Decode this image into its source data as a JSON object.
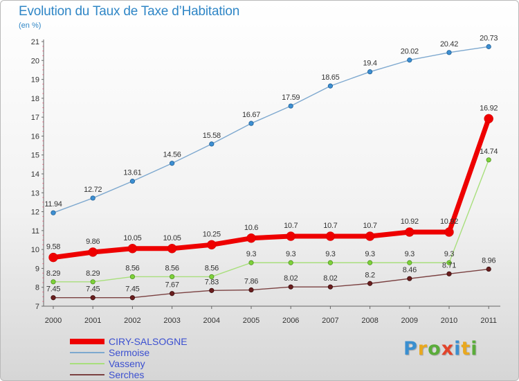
{
  "title": "Evolution du Taux de Taxe d’Habitation",
  "subtitle": "(en %)",
  "logo": {
    "text": "Proxiti",
    "letter_colors": [
      "#3a8fd0",
      "#e9a81f",
      "#5aac3a",
      "#e2442b",
      "#3a8fd0",
      "#e9a81f",
      "#5aac3a"
    ]
  },
  "chart_data": {
    "type": "line",
    "title": "Evolution du Taux de Taxe d’Habitation",
    "ylabel": "(en %)",
    "xlabel": "",
    "x": [
      "2000",
      "2001",
      "2002",
      "2003",
      "2004",
      "2005",
      "2006",
      "2007",
      "2008",
      "2009",
      "2010",
      "2011"
    ],
    "ylim": [
      7,
      21
    ],
    "yticks": [
      "7",
      "8",
      "9",
      "10",
      "11",
      "12",
      "13",
      "14",
      "15",
      "16",
      "17",
      "18",
      "19",
      "20",
      "21"
    ],
    "grid": false,
    "legend_position": "bottom-left",
    "series": [
      {
        "name": "CIRY-SALSOGNE",
        "color": "#ee0000",
        "values": [
          9.58,
          9.86,
          10.05,
          10.05,
          10.25,
          10.6,
          10.7,
          10.7,
          10.7,
          10.92,
          10.92,
          16.92
        ],
        "labels": [
          "9.58",
          "9.86",
          "10.05",
          "10.05",
          "10.25",
          "10.6",
          "10.7",
          "10.7",
          "10.7",
          "10.92",
          "10.92",
          "16.92"
        ]
      },
      {
        "name": "Sermoise",
        "color": "#7da8cf",
        "values": [
          11.94,
          12.72,
          13.61,
          14.56,
          15.58,
          16.67,
          17.59,
          18.65,
          19.4,
          20.02,
          20.42,
          20.73
        ],
        "labels": [
          "11.94",
          "12.72",
          "13.61",
          "14.56",
          "15.58",
          "16.67",
          "17.59",
          "18.65",
          "19.4",
          "20.02",
          "20.42",
          "20.73"
        ]
      },
      {
        "name": "Vasseny",
        "color": "#a8df7c",
        "values": [
          8.29,
          8.29,
          8.56,
          8.56,
          8.56,
          9.3,
          9.3,
          9.3,
          9.3,
          9.3,
          9.3,
          14.74
        ],
        "labels": [
          "8.29",
          "8.29",
          "8.56",
          "8.56",
          "8.56",
          "9.3",
          "9.3",
          "9.3",
          "9.3",
          "9.3",
          "9.3",
          "14.74"
        ]
      },
      {
        "name": "Serches",
        "color": "#7a4040",
        "values": [
          7.45,
          7.45,
          7.45,
          7.67,
          7.83,
          7.86,
          8.02,
          8.02,
          8.2,
          8.46,
          8.71,
          8.96
        ],
        "labels": [
          "7.45",
          "7.45",
          "7.45",
          "7.67",
          "7.83",
          "7.86",
          "8.02",
          "8.02",
          "8.2",
          "8.46",
          "8.71",
          "8.96"
        ]
      }
    ]
  }
}
